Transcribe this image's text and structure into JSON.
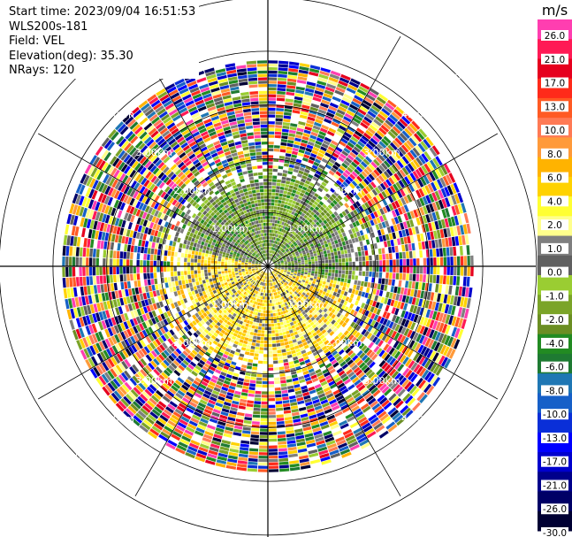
{
  "info": {
    "start_time": "Start time: 2023/09/04 16:51:53",
    "instrument": "WLS200s-181",
    "field": "Field: VEL",
    "elevation": "Elevation(deg): 35.30",
    "nrays": "NRays: 120"
  },
  "chart_data": {
    "type": "heatmap",
    "projection": "polar-ppi",
    "field": "VEL",
    "units": "m/s",
    "nrays": 120,
    "range_ring_labels": [
      "1.00km",
      "2.00km",
      "3.00km",
      "4.00km",
      "5.00km"
    ],
    "max_range_km": 5.4,
    "colorbar": {
      "title": "m/s",
      "tick_labels": [
        "26.0",
        "21.0",
        "17.0",
        "13.0",
        "10.0",
        "8.0",
        "6.0",
        "4.0",
        "2.0",
        "1.0",
        "0.0",
        "-1.0",
        "-2.0",
        "-4.0",
        "-6.0",
        "-8.0",
        "-10.0",
        "-13.0",
        "-17.0",
        "-21.0",
        "-26.0",
        "-30.0"
      ],
      "colors": [
        "#ff3eb0",
        "#ff1a55",
        "#e6001e",
        "#ff2a1a",
        "#ff5a24",
        "#ff7a55",
        "#ff9a3a",
        "#ffb300",
        "#ffd200",
        "#ffff32",
        "#ffff8c",
        "#7f7f7f",
        "#606060",
        "#9acd32",
        "#7ba428",
        "#6b8e23",
        "#228b22",
        "#1e7a32",
        "#1f77b4",
        "#1660c8",
        "#0a2fd8",
        "#0000ff",
        "#0000cd",
        "#00008b",
        "#000066",
        "#000033"
      ]
    },
    "legend_placement": "right",
    "grid": true
  }
}
